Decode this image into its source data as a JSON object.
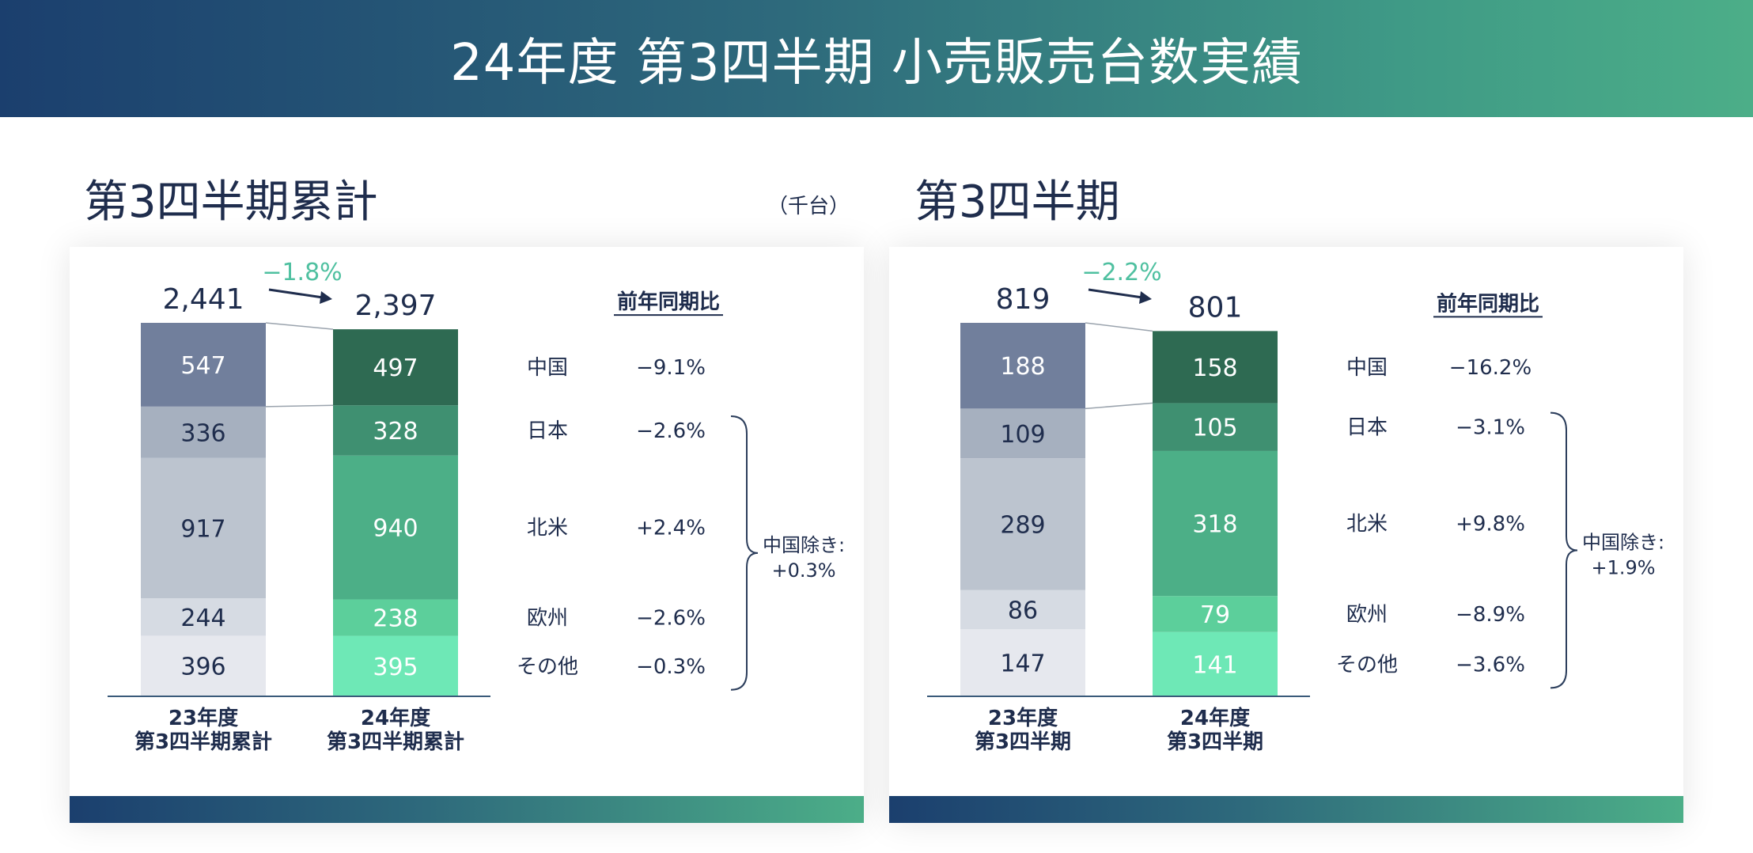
{
  "header": {
    "title": "24年度 第3四半期 小売販売台数実績"
  },
  "unit_label": "（千台）",
  "panels": [
    {
      "title": "第3四半期累計",
      "yoy_header": "前年同期比",
      "change_label": "−1.8%",
      "excl_label_line1": "中国除き:",
      "excl_label_line2": "+0.3%",
      "chart_data": {
        "type": "bar",
        "stacked": true,
        "categories": [
          "23年度\n第3四半期累計",
          "24年度\n第3四半期累計"
        ],
        "totals": [
          "2,441",
          "2,397"
        ],
        "series": [
          {
            "name": "その他",
            "values": [
              396,
              395
            ],
            "yoy": "−0.3%"
          },
          {
            "name": "欧州",
            "values": [
              244,
              238
            ],
            "yoy": "−2.6%"
          },
          {
            "name": "北米",
            "values": [
              917,
              940
            ],
            "yoy": "+2.4%"
          },
          {
            "name": "日本",
            "values": [
              336,
              328
            ],
            "yoy": "−2.6%"
          },
          {
            "name": "中国",
            "values": [
              547,
              497
            ],
            "yoy": "−9.1%"
          }
        ],
        "colors_prev": [
          "#e6e8ee",
          "#d6dbe3",
          "#bcc4cf",
          "#a6b0bf",
          "#717f9c"
        ],
        "colors_curr": [
          "#6ee8b6",
          "#5ccf9b",
          "#4caf87",
          "#3f9071",
          "#2e6a52"
        ]
      }
    },
    {
      "title": "第3四半期",
      "yoy_header": "前年同期比",
      "change_label": "−2.2%",
      "excl_label_line1": "中国除き:",
      "excl_label_line2": "+1.9%",
      "chart_data": {
        "type": "bar",
        "stacked": true,
        "categories": [
          "23年度\n第3四半期",
          "24年度\n第3四半期"
        ],
        "totals": [
          "819",
          "801"
        ],
        "series": [
          {
            "name": "その他",
            "values": [
              147,
              141
            ],
            "yoy": "−3.6%"
          },
          {
            "name": "欧州",
            "values": [
              86,
              79
            ],
            "yoy": "−8.9%"
          },
          {
            "name": "北米",
            "values": [
              289,
              318
            ],
            "yoy": "+9.8%"
          },
          {
            "name": "日本",
            "values": [
              109,
              105
            ],
            "yoy": "−3.1%"
          },
          {
            "name": "中国",
            "values": [
              188,
              158
            ],
            "yoy": "−16.2%"
          }
        ],
        "colors_prev": [
          "#e6e8ee",
          "#d6dbe3",
          "#bcc4cf",
          "#a6b0bf",
          "#717f9c"
        ],
        "colors_curr": [
          "#6ee8b6",
          "#5ccf9b",
          "#4caf87",
          "#3f9071",
          "#2e6a52"
        ]
      }
    }
  ]
}
